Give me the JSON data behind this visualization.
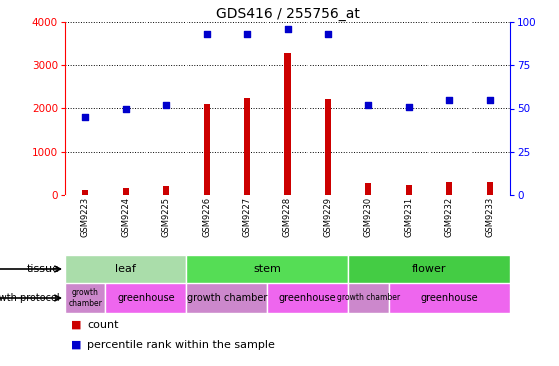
{
  "title": "GDS416 / 255756_at",
  "samples": [
    "GSM9223",
    "GSM9224",
    "GSM9225",
    "GSM9226",
    "GSM9227",
    "GSM9228",
    "GSM9229",
    "GSM9230",
    "GSM9231",
    "GSM9232",
    "GSM9233"
  ],
  "counts": [
    120,
    160,
    200,
    2100,
    2250,
    3280,
    2230,
    280,
    240,
    295,
    290
  ],
  "percentiles": [
    45,
    50,
    52,
    93,
    93,
    96,
    93,
    52,
    51,
    55,
    55
  ],
  "ylim_left": [
    0,
    4000
  ],
  "ylim_right": [
    0,
    100
  ],
  "yticks_left": [
    0,
    1000,
    2000,
    3000,
    4000
  ],
  "yticks_right": [
    0,
    25,
    50,
    75,
    100
  ],
  "bar_color": "#cc0000",
  "dot_color": "#0000cc",
  "tissue_groups": [
    {
      "label": "leaf",
      "start": 0,
      "end": 3,
      "color": "#aaeea a"
    },
    {
      "label": "stem",
      "start": 3,
      "end": 7,
      "color": "#55dd55"
    },
    {
      "label": "flower",
      "start": 7,
      "end": 11,
      "color": "#44cc44"
    }
  ],
  "protocol_groups": [
    {
      "label": "growth\nchamber",
      "start": 0,
      "end": 1,
      "color": "#cc88cc"
    },
    {
      "label": "greenhouse",
      "start": 1,
      "end": 3,
      "color": "#ee66ee"
    },
    {
      "label": "growth chamber",
      "start": 3,
      "end": 5,
      "color": "#cc88cc"
    },
    {
      "label": "greenhouse",
      "start": 5,
      "end": 7,
      "color": "#ee66ee"
    },
    {
      "label": "growth chamber",
      "start": 7,
      "end": 8,
      "color": "#cc88cc"
    },
    {
      "label": "greenhouse",
      "start": 8,
      "end": 11,
      "color": "#ee66ee"
    }
  ],
  "tissue_label": "tissue",
  "protocol_label": "growth protocol",
  "legend_count_label": "count",
  "legend_percentile_label": "percentile rank within the sample",
  "bg_color": "#ffffff",
  "plot_bg": "#ffffff",
  "label_bg": "#cccccc",
  "tissue_leaf_color": "#aaddaa",
  "tissue_stem_color": "#55dd55",
  "tissue_flower_color": "#44cc44",
  "proto_chamber_color": "#cc88cc",
  "proto_greenhouse_color": "#ee66ee"
}
